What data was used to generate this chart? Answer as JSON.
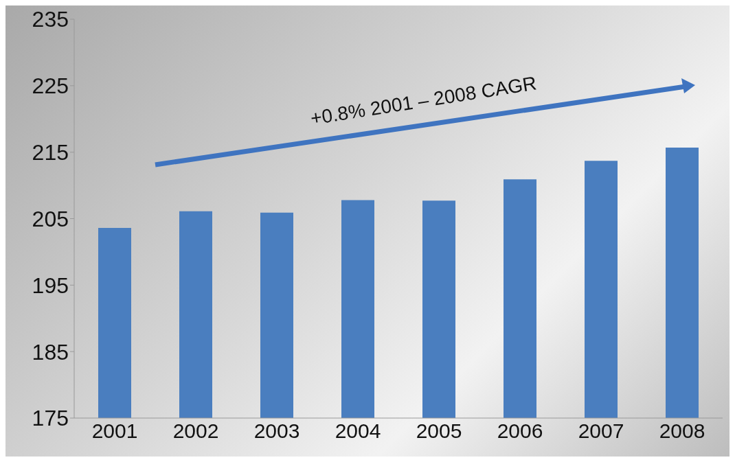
{
  "chart_data": {
    "type": "bar",
    "categories": [
      "2001",
      "2002",
      "2003",
      "2004",
      "2005",
      "2006",
      "2007",
      "2008"
    ],
    "values": [
      203.6,
      206.1,
      205.9,
      207.8,
      207.7,
      210.9,
      213.7,
      215.7
    ],
    "color": "#4a7ebf",
    "ylim": [
      175,
      235
    ],
    "yticks": [
      175,
      185,
      195,
      205,
      215,
      225,
      235
    ],
    "annotations": [
      "+0.8% 2001 – 2008 CAGR"
    ]
  }
}
